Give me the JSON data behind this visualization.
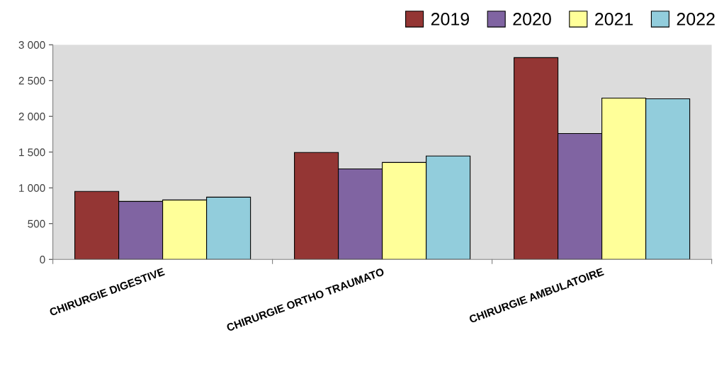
{
  "chart_data": {
    "type": "bar",
    "categories": [
      "CHIRURGIE DIGESTIVE",
      "CHIRURGIE ORTHO TRAUMATO",
      "CHIRURGIE AMBULATOIRE"
    ],
    "series": [
      {
        "name": "2019",
        "color": "#943634",
        "values": [
          950,
          1495,
          2820
        ]
      },
      {
        "name": "2020",
        "color": "#8064a2",
        "values": [
          810,
          1265,
          1760
        ]
      },
      {
        "name": "2021",
        "color": "#ffff99",
        "values": [
          830,
          1355,
          2255
        ]
      },
      {
        "name": "2022",
        "color": "#92cddc",
        "values": [
          870,
          1445,
          2245
        ]
      }
    ],
    "ylim": [
      0,
      3000
    ],
    "yticks": [
      {
        "value": 0,
        "label": "0"
      },
      {
        "value": 500,
        "label": "500"
      },
      {
        "value": 1000,
        "label": "1 000"
      },
      {
        "value": 1500,
        "label": "1 500"
      },
      {
        "value": 2000,
        "label": "2 000"
      },
      {
        "value": 2500,
        "label": "2 500"
      },
      {
        "value": 3000,
        "label": "3 000"
      }
    ],
    "grid": false,
    "legend": "top right"
  }
}
